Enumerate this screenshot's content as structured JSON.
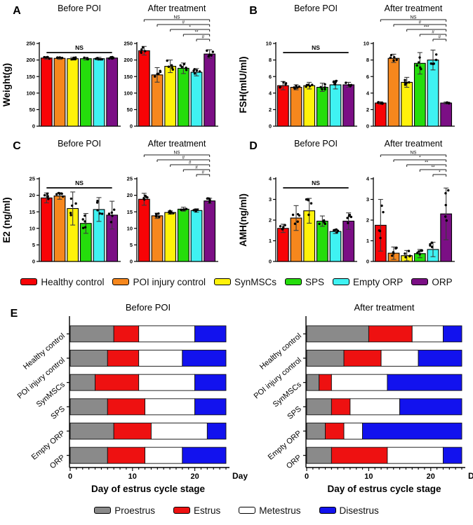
{
  "figure": {
    "background": "#FFFFFF"
  },
  "legends": {
    "groups": [
      {
        "label": "Healthy control",
        "color": "#F80306"
      },
      {
        "label": "POI injury control",
        "color": "#F6871D"
      },
      {
        "label": "SynMSCs",
        "color": "#FFF20A"
      },
      {
        "label": "SPS",
        "color": "#25DD0C"
      },
      {
        "label": "Empty ORP",
        "color": "#3FF2F2"
      },
      {
        "label": "ORP",
        "color": "#7B0F85"
      }
    ],
    "stages": [
      {
        "label": "Proestrus",
        "color": "#8A8A8A"
      },
      {
        "label": "Estrus",
        "color": "#EE1111"
      },
      {
        "label": "Metestrus",
        "color": "#FFFFFF"
      },
      {
        "label": "Disestrus",
        "color": "#1212EE"
      }
    ]
  },
  "chart_data": [
    {
      "type": "bar",
      "panel": "A",
      "ylabel": "Weight(g)",
      "ylim": [
        0,
        250
      ],
      "yticks": [
        0,
        50,
        100,
        150,
        200,
        250
      ],
      "categories": [
        "Healthy control",
        "POI injury control",
        "SynMSCs",
        "SPS",
        "Empty ORP",
        "ORP"
      ],
      "points_per_bar": 5,
      "subplots": [
        {
          "title": "Before POI",
          "annotation": "NS",
          "values": [
            206,
            205,
            204,
            204,
            204,
            206
          ],
          "errors": [
            4,
            3,
            4,
            4,
            4,
            3
          ]
        },
        {
          "title": "After treatment",
          "values": [
            228,
            155,
            181,
            175,
            163,
            218
          ],
          "errors": [
            13,
            22,
            19,
            16,
            11,
            13
          ],
          "brackets": [
            {
              "from": 0,
              "to": 5,
              "label": "NS"
            },
            {
              "from": 1,
              "to": 5,
              "label": "#"
            },
            {
              "from": 2,
              "to": 5,
              "label": "*"
            },
            {
              "from": 3,
              "to": 5,
              "label": "**"
            },
            {
              "from": 4,
              "to": 5,
              "label": "#"
            }
          ]
        }
      ]
    },
    {
      "type": "bar",
      "panel": "B",
      "ylabel": "FSH(mIU/ml)",
      "ylim": [
        0,
        10
      ],
      "yticks": [
        0,
        2,
        4,
        6,
        8,
        10
      ],
      "categories": [
        "Healthy control",
        "POI injury control",
        "SynMSCs",
        "SPS",
        "Empty ORP",
        "ORP"
      ],
      "points_per_bar": 5,
      "subplots": [
        {
          "title": "Before POI",
          "annotation": "NS",
          "values": [
            4.9,
            4.7,
            4.9,
            4.7,
            5.0,
            5.0
          ],
          "errors": [
            0.5,
            0.3,
            0.4,
            0.5,
            0.5,
            0.3
          ]
        },
        {
          "title": "After treatment",
          "values": [
            2.8,
            8.2,
            5.3,
            7.6,
            8.0,
            2.8
          ],
          "errors": [
            0.15,
            0.5,
            0.6,
            1.3,
            1.2,
            0.12
          ],
          "brackets": [
            {
              "from": 0,
              "to": 5,
              "label": "NS"
            },
            {
              "from": 1,
              "to": 5,
              "label": "#"
            },
            {
              "from": 2,
              "to": 5,
              "label": "***"
            },
            {
              "from": 3,
              "to": 5,
              "label": "#"
            },
            {
              "from": 4,
              "to": 5,
              "label": "#"
            }
          ]
        }
      ]
    },
    {
      "type": "bar",
      "panel": "C",
      "ylabel": "E2 (ng/ml)",
      "ylim": [
        0,
        25
      ],
      "yticks": [
        0,
        5,
        10,
        15,
        20,
        25
      ],
      "categories": [
        "Healthy control",
        "POI injury control",
        "SynMSCs",
        "SPS",
        "Empty ORP",
        "ORP"
      ],
      "points_per_bar": 5,
      "subplots": [
        {
          "title": "Before POI",
          "annotation": "NS",
          "values": [
            19.2,
            19.8,
            16.0,
            11.5,
            15.7,
            14.0
          ],
          "errors": [
            1.5,
            1.0,
            5.0,
            3.0,
            3.6,
            4.2
          ]
        },
        {
          "title": "After treatment",
          "values": [
            18.8,
            13.8,
            14.8,
            15.8,
            15.4,
            18.3
          ],
          "errors": [
            1.8,
            0.8,
            0.5,
            0.6,
            0.5,
            0.8
          ],
          "brackets": [
            {
              "from": 0,
              "to": 5,
              "label": "NS"
            },
            {
              "from": 1,
              "to": 5,
              "label": "#"
            },
            {
              "from": 2,
              "to": 5,
              "label": "#"
            },
            {
              "from": 3,
              "to": 5,
              "label": "#"
            },
            {
              "from": 4,
              "to": 5,
              "label": "#"
            }
          ]
        }
      ]
    },
    {
      "type": "bar",
      "panel": "D",
      "ylabel": "AMH(ng/ml)",
      "ylim": [
        0,
        4
      ],
      "yticks": [
        0,
        1,
        2,
        3,
        4
      ],
      "categories": [
        "Healthy control",
        "POI injury control",
        "SynMSCs",
        "SPS",
        "Empty ORP",
        "ORP"
      ],
      "points_per_bar": 5,
      "subplots": [
        {
          "title": "Before POI",
          "annotation": "NS",
          "values": [
            1.6,
            2.1,
            2.45,
            1.95,
            1.45,
            1.95
          ],
          "errors": [
            0.2,
            0.6,
            0.6,
            0.25,
            0.1,
            0.4
          ]
        },
        {
          "title": "After treatment",
          "values": [
            1.75,
            0.4,
            0.28,
            0.38,
            0.58,
            2.3
          ],
          "errors": [
            1.25,
            0.3,
            0.25,
            0.2,
            0.35,
            1.25
          ],
          "brackets": [
            {
              "from": 0,
              "to": 5,
              "label": "NS"
            },
            {
              "from": 1,
              "to": 5,
              "label": "*"
            },
            {
              "from": 2,
              "to": 5,
              "label": "**"
            },
            {
              "from": 3,
              "to": 5,
              "label": "**"
            },
            {
              "from": 4,
              "to": 5,
              "label": "*"
            }
          ]
        }
      ]
    },
    {
      "type": "stacked-bar-horizontal",
      "panel": "E",
      "xlabel": "Day of estrus cycle stage",
      "axis_end_label": "Day",
      "xlim": [
        0,
        25
      ],
      "xticks": [
        0,
        10,
        20
      ],
      "categories": [
        "Healthy control",
        "POI injury control",
        "SynMSCs",
        "SPS",
        "Empty ORP",
        "ORP"
      ],
      "stages": [
        "Proestrus",
        "Estrus",
        "Metestrus",
        "Disestrus"
      ],
      "subplots": [
        {
          "title": "Before POI",
          "rows": [
            [
              7,
              4,
              9,
              5
            ],
            [
              6,
              5,
              7,
              7
            ],
            [
              4,
              7,
              9,
              5
            ],
            [
              6,
              6,
              8,
              5
            ],
            [
              7,
              6,
              9,
              3
            ],
            [
              6,
              6,
              6,
              7
            ]
          ]
        },
        {
          "title": "After treatment",
          "rows": [
            [
              10,
              7,
              5,
              3
            ],
            [
              6,
              6,
              6,
              7
            ],
            [
              2,
              2,
              9,
              12
            ],
            [
              4,
              3,
              8,
              10
            ],
            [
              3,
              3,
              3,
              16
            ],
            [
              4,
              9,
              9,
              3
            ]
          ]
        }
      ]
    }
  ]
}
